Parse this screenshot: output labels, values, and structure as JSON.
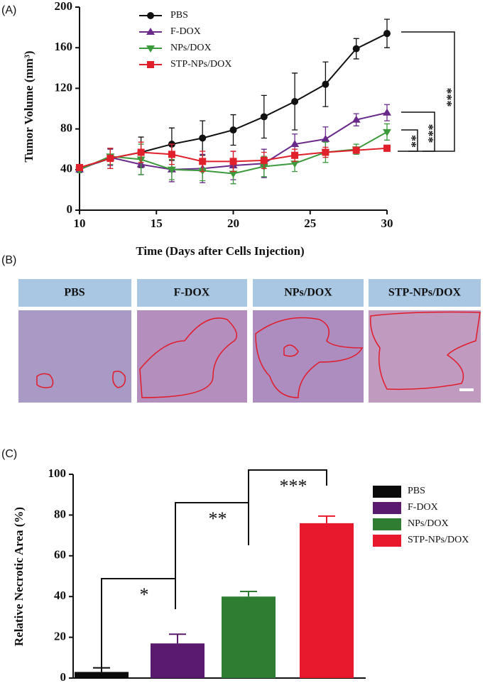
{
  "panel_labels": [
    "(A)",
    "(B)",
    "(C)"
  ],
  "histology": {
    "headers": [
      "PBS",
      "F-DOX",
      "NPs/DOX",
      "STP-NPs/DOX"
    ]
  },
  "chart_data": [
    {
      "type": "line",
      "xlabel": "Time (Days after Cells Injection)",
      "ylabel": "Tumor Volume (mm³)",
      "x": [
        10,
        12,
        14,
        16,
        18,
        20,
        22,
        24,
        26,
        28,
        30
      ],
      "xlim": [
        10,
        30
      ],
      "xticks": [
        10,
        15,
        20,
        25,
        30
      ],
      "ylim": [
        0,
        200
      ],
      "yticks": [
        0,
        40,
        80,
        120,
        160,
        200
      ],
      "series": [
        {
          "name": "PBS",
          "color": "#111111",
          "marker": "circle",
          "values": [
            41,
            51,
            57,
            65,
            71,
            79,
            92,
            107,
            124,
            159,
            174
          ],
          "errors": [
            3,
            10,
            15,
            16,
            17,
            15,
            21,
            28,
            22,
            10,
            14
          ]
        },
        {
          "name": "F-DOX",
          "color": "#6a2a8a",
          "marker": "triangle-up",
          "values": [
            40,
            52,
            45,
            40,
            41,
            44,
            46,
            65,
            70,
            89,
            96
          ],
          "errors": [
            3,
            8,
            10,
            12,
            14,
            14,
            14,
            10,
            12,
            6,
            8
          ]
        },
        {
          "name": "NPs/DOX",
          "color": "#3c9a3c",
          "marker": "triangle-down",
          "values": [
            40,
            53,
            50,
            40,
            39,
            36,
            43,
            46,
            57,
            60,
            77
          ],
          "errors": [
            3,
            8,
            15,
            10,
            10,
            10,
            10,
            8,
            10,
            5,
            8
          ]
        },
        {
          "name": "STP-NPs/DOX",
          "color": "#e0202a",
          "marker": "square",
          "values": [
            42,
            51,
            57,
            55,
            48,
            48,
            49,
            54,
            57,
            59,
            61
          ],
          "errors": [
            3,
            10,
            10,
            10,
            10,
            10,
            8,
            6,
            5,
            3,
            3
          ]
        }
      ],
      "annotations": [
        "***",
        "***",
        "**"
      ]
    },
    {
      "type": "bar",
      "ylabel": "Relative Necrotic Area (%)",
      "categories": [
        "PBS",
        "F-DOX",
        "NPs/DOX",
        "STP-NPs/DOX"
      ],
      "values": [
        3,
        17,
        40,
        76
      ],
      "errors": [
        2,
        4.5,
        2.5,
        3.5
      ],
      "colors": [
        "#0a0a0a",
        "#5a1a6e",
        "#2e7d32",
        "#e8192c"
      ],
      "ylim": [
        0,
        100
      ],
      "yticks": [
        0,
        20,
        40,
        60,
        80,
        100
      ],
      "annotations": [
        "*",
        "**",
        "***"
      ]
    }
  ]
}
